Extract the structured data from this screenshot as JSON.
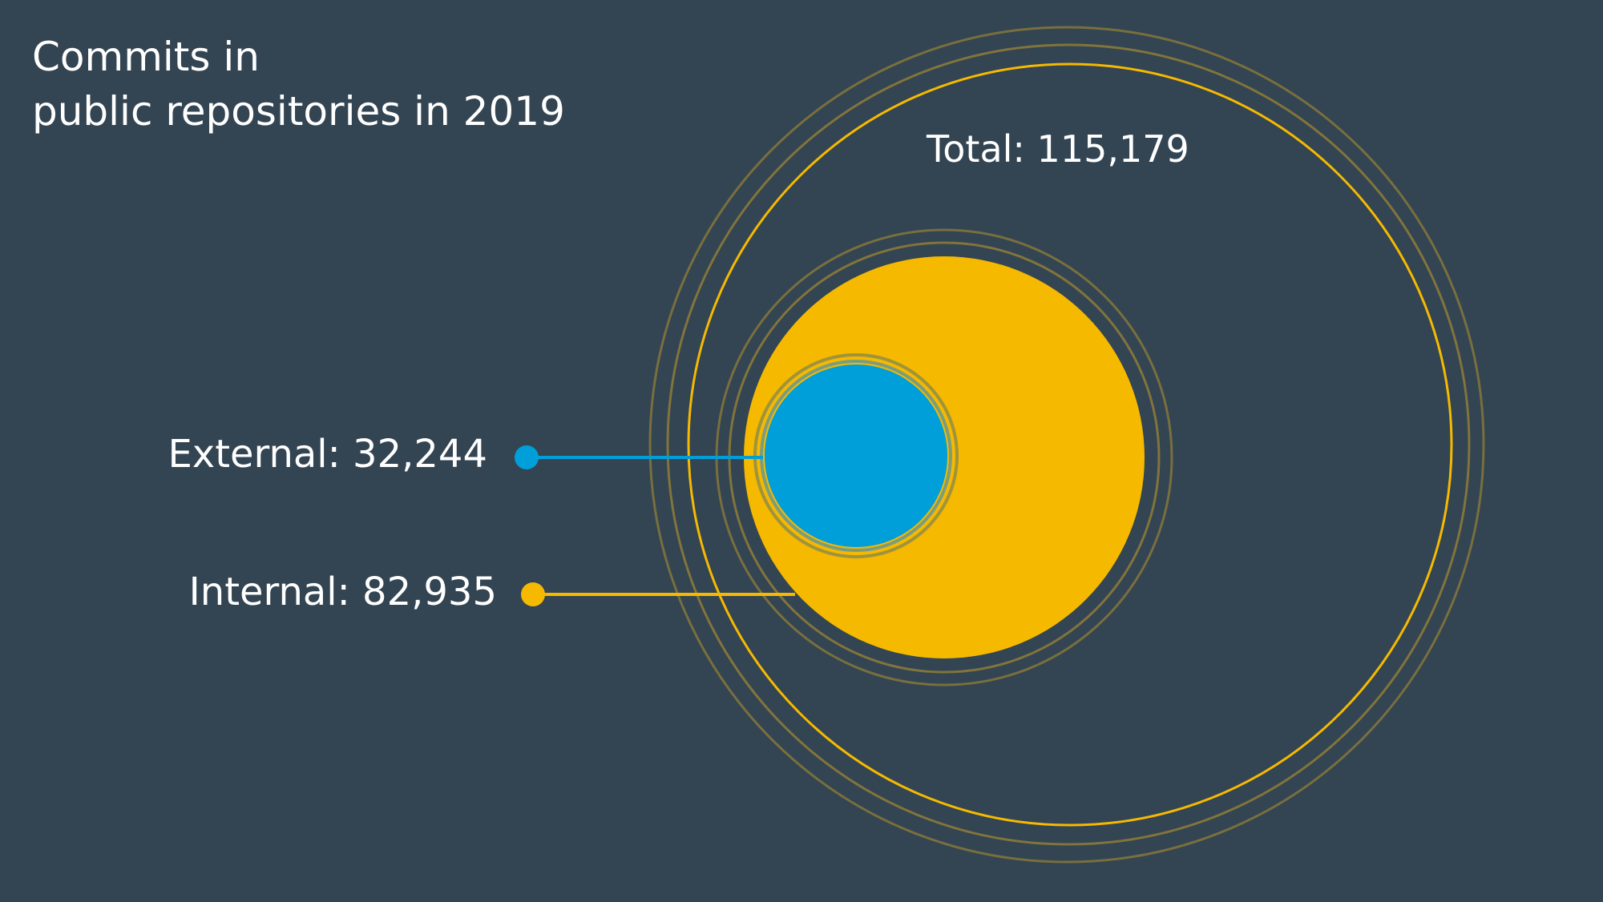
{
  "chart_data": {
    "type": "bubble",
    "title_lines": [
      "Commits in",
      "public repositories in 2019"
    ],
    "total": {
      "label": "Total: 115,179",
      "value": 115179,
      "color": "#f5b900"
    },
    "series": [
      {
        "name": "Internal",
        "label": "Internal: 82,935",
        "value": 82935,
        "color": "#f5b900"
      },
      {
        "name": "External",
        "label": "External: 32,244",
        "value": 32244,
        "color": "#009fd9"
      }
    ],
    "colors": {
      "background": "#334452",
      "text": "#ffffff",
      "ring": "#8a7a3a"
    }
  }
}
